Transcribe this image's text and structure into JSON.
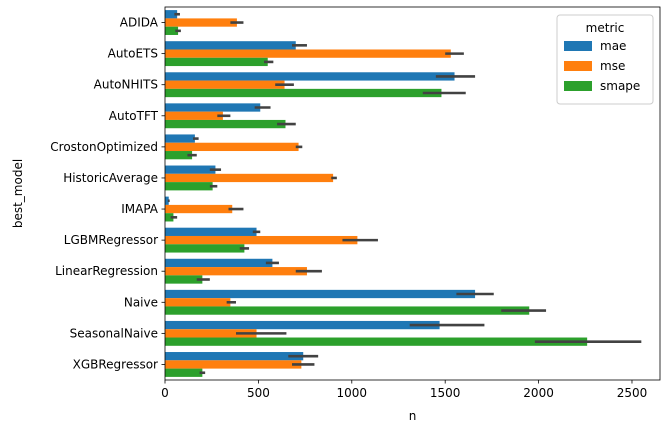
{
  "chart_data": {
    "type": "bar",
    "orientation": "horizontal",
    "xlabel": "n",
    "ylabel": "best_model",
    "xlim": [
      0,
      2650
    ],
    "xticks": [
      0,
      500,
      1000,
      1500,
      2000,
      2500
    ],
    "xtick_labels": [
      "0",
      "500",
      "1000",
      "1500",
      "2000",
      "2500"
    ],
    "grid": false,
    "legend_title": "metric",
    "legend_position": "upper-right",
    "categories": [
      "ADIDA",
      "AutoETS",
      "AutoNHITS",
      "AutoTFT",
      "CrostonOptimized",
      "HistoricAverage",
      "IMAPA",
      "LGBMRegressor",
      "LinearRegression",
      "Naive",
      "SeasonalNaive",
      "XGBRegressor"
    ],
    "series": [
      {
        "name": "mae",
        "color": "#1f77b4",
        "values": [
          65,
          700,
          1550,
          510,
          160,
          270,
          20,
          490,
          575,
          1660,
          1470,
          740
        ],
        "ci_low": [
          50,
          680,
          1450,
          480,
          150,
          240,
          15,
          470,
          540,
          1560,
          1310,
          660
        ],
        "ci_high": [
          80,
          760,
          1660,
          565,
          180,
          300,
          25,
          510,
          610,
          1760,
          1710,
          820
        ]
      },
      {
        "name": "mse",
        "color": "#ff7f0e",
        "values": [
          385,
          1530,
          640,
          310,
          715,
          900,
          360,
          1030,
          760,
          350,
          490,
          730
        ],
        "ci_low": [
          350,
          1500,
          590,
          280,
          700,
          890,
          340,
          950,
          700,
          330,
          380,
          680
        ],
        "ci_high": [
          420,
          1600,
          690,
          350,
          735,
          920,
          420,
          1140,
          840,
          380,
          650,
          800
        ]
      },
      {
        "name": "smape",
        "color": "#2ca02c",
        "values": [
          70,
          550,
          1480,
          645,
          145,
          255,
          45,
          425,
          200,
          1950,
          2260,
          200
        ],
        "ci_low": [
          55,
          530,
          1380,
          600,
          120,
          240,
          30,
          400,
          170,
          1800,
          1980,
          185
        ],
        "ci_high": [
          85,
          580,
          1610,
          700,
          170,
          280,
          65,
          450,
          240,
          2040,
          2550,
          215
        ]
      }
    ]
  }
}
